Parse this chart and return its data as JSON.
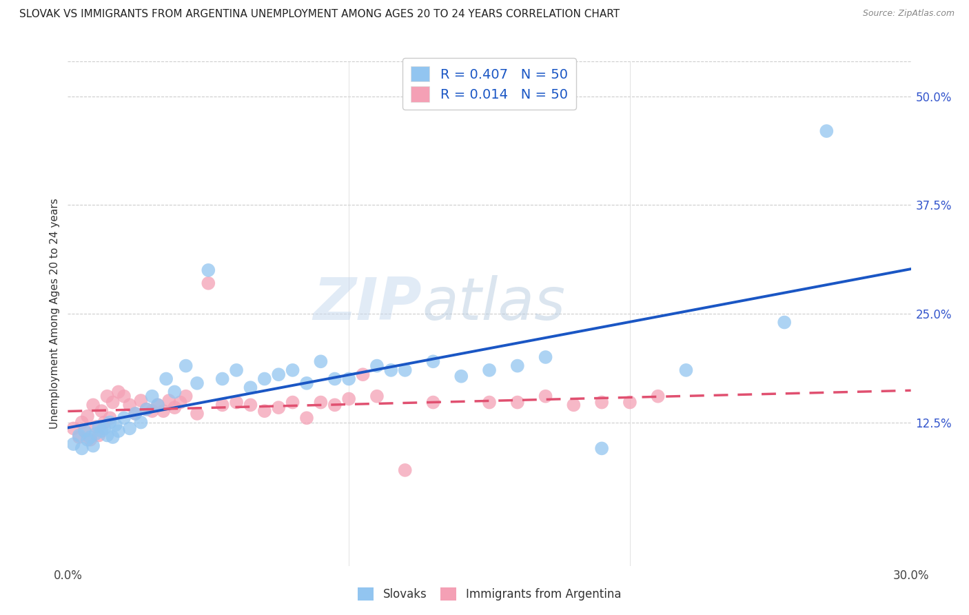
{
  "title": "SLOVAK VS IMMIGRANTS FROM ARGENTINA UNEMPLOYMENT AMONG AGES 20 TO 24 YEARS CORRELATION CHART",
  "source": "Source: ZipAtlas.com",
  "ylabel": "Unemployment Among Ages 20 to 24 years",
  "xlim": [
    0.0,
    0.3
  ],
  "ylim": [
    -0.04,
    0.54
  ],
  "xticks": [
    0.0,
    0.05,
    0.1,
    0.15,
    0.2,
    0.25,
    0.3
  ],
  "xticklabels": [
    "0.0%",
    "",
    "",
    "",
    "",
    "",
    "30.0%"
  ],
  "yticks_right": [
    0.125,
    0.25,
    0.375,
    0.5
  ],
  "yticklabels_right": [
    "12.5%",
    "25.0%",
    "37.5%",
    "50.0%"
  ],
  "slovak_color": "#92c5f0",
  "arg_color": "#f4a0b5",
  "slovak_line_color": "#1a56c4",
  "arg_line_color": "#e05070",
  "R_slovak": 0.407,
  "R_arg": 0.014,
  "N": 50,
  "watermark_zip": "ZIP",
  "watermark_atlas": "atlas",
  "slovak_scatter_x": [
    0.002,
    0.004,
    0.005,
    0.006,
    0.007,
    0.008,
    0.009,
    0.01,
    0.011,
    0.012,
    0.013,
    0.014,
    0.015,
    0.016,
    0.017,
    0.018,
    0.02,
    0.022,
    0.024,
    0.026,
    0.028,
    0.03,
    0.032,
    0.035,
    0.038,
    0.042,
    0.046,
    0.05,
    0.055,
    0.06,
    0.065,
    0.07,
    0.075,
    0.08,
    0.085,
    0.09,
    0.095,
    0.1,
    0.11,
    0.115,
    0.12,
    0.13,
    0.14,
    0.15,
    0.16,
    0.17,
    0.19,
    0.22,
    0.255,
    0.27
  ],
  "slovak_scatter_y": [
    0.1,
    0.11,
    0.095,
    0.115,
    0.105,
    0.108,
    0.098,
    0.112,
    0.12,
    0.115,
    0.118,
    0.11,
    0.125,
    0.108,
    0.122,
    0.115,
    0.13,
    0.118,
    0.135,
    0.125,
    0.14,
    0.155,
    0.145,
    0.175,
    0.16,
    0.19,
    0.17,
    0.3,
    0.175,
    0.185,
    0.165,
    0.175,
    0.18,
    0.185,
    0.17,
    0.195,
    0.175,
    0.175,
    0.19,
    0.185,
    0.185,
    0.195,
    0.178,
    0.185,
    0.19,
    0.2,
    0.095,
    0.185,
    0.24,
    0.46
  ],
  "arg_scatter_x": [
    0.002,
    0.004,
    0.005,
    0.006,
    0.007,
    0.008,
    0.009,
    0.01,
    0.011,
    0.012,
    0.013,
    0.014,
    0.015,
    0.016,
    0.018,
    0.02,
    0.022,
    0.024,
    0.026,
    0.028,
    0.03,
    0.032,
    0.034,
    0.036,
    0.038,
    0.04,
    0.042,
    0.046,
    0.05,
    0.055,
    0.06,
    0.065,
    0.07,
    0.075,
    0.08,
    0.085,
    0.09,
    0.095,
    0.1,
    0.105,
    0.11,
    0.12,
    0.13,
    0.15,
    0.16,
    0.17,
    0.18,
    0.19,
    0.2,
    0.21
  ],
  "arg_scatter_y": [
    0.118,
    0.108,
    0.125,
    0.115,
    0.132,
    0.105,
    0.145,
    0.12,
    0.11,
    0.138,
    0.125,
    0.155,
    0.13,
    0.148,
    0.16,
    0.155,
    0.145,
    0.135,
    0.15,
    0.14,
    0.138,
    0.145,
    0.138,
    0.15,
    0.142,
    0.148,
    0.155,
    0.135,
    0.285,
    0.145,
    0.148,
    0.145,
    0.138,
    0.142,
    0.148,
    0.13,
    0.148,
    0.145,
    0.152,
    0.18,
    0.155,
    0.07,
    0.148,
    0.148,
    0.148,
    0.155,
    0.145,
    0.148,
    0.148,
    0.155
  ]
}
